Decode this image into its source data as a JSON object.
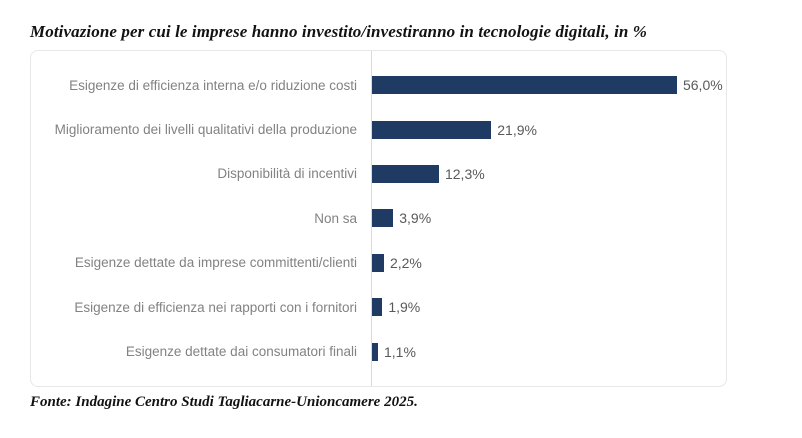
{
  "title": "Motivazione per cui le imprese hanno investito/investiranno in tecnologie digitali, in %",
  "source": "Fonte: Indagine Centro Studi Tagliacarne-Unioncamere 2025.",
  "colors": {
    "bar": "#1f3a63",
    "category_label": "#828282",
    "value_label": "#595959",
    "axis_line": "#d9d9d9",
    "plot_border": "#e7e7e7",
    "title_text": "#121212"
  },
  "chart_data": {
    "type": "bar",
    "orientation": "horizontal",
    "title": "Motivazione per cui le imprese hanno investito/investiranno in tecnologie digitali, in %",
    "categories": [
      "Esigenze di efficienza interna e/o riduzione costi",
      "Miglioramento dei livelli qualitativi della produzione",
      "Disponibilità di incentivi",
      "Non sa",
      "Esigenze dettate da imprese committenti/clienti",
      "Esigenze di efficienza nei rapporti con i fornitori",
      "Esigenze dettate dai consumatori finali"
    ],
    "values": [
      56.0,
      21.9,
      12.3,
      3.9,
      2.2,
      1.9,
      1.1
    ],
    "value_labels": [
      "56,0%",
      "21,9%",
      "12,3%",
      "3,9%",
      "2,2%",
      "1,9%",
      "1,1%"
    ],
    "xlabel": "",
    "ylabel": "",
    "xlim": [
      0,
      65
    ],
    "grid": false,
    "legend": false,
    "annotation": "Fonte: Indagine Centro Studi Tagliacarne-Unioncamere 2025."
  }
}
